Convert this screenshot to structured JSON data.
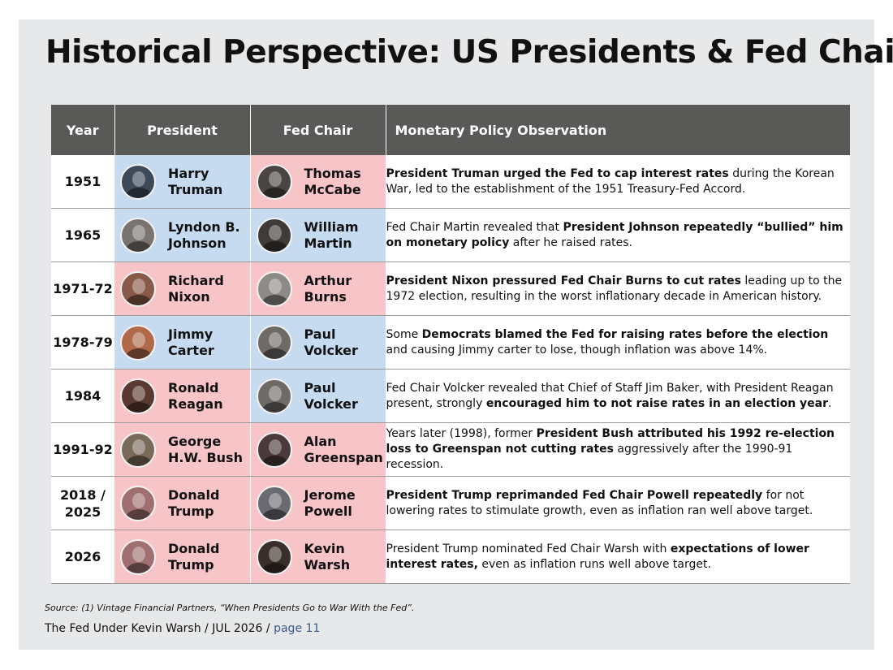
{
  "title": "Historical Perspective: US Presidents & Fed Chairs",
  "table": {
    "headers": [
      "Year",
      "President",
      "Fed Chair",
      "Monetary Policy Observation"
    ],
    "rows": [
      {
        "year": "1951",
        "president": {
          "name": "Harry Truman",
          "color": "blue",
          "icon": "portrait-truman-icon",
          "avatar": "#3d4a5a"
        },
        "chair": {
          "name": "Thomas McCabe",
          "color": "red",
          "icon": "portrait-mccabe-icon",
          "avatar": "#4a4542"
        },
        "obs": [
          {
            "text": "President Truman urged the Fed to cap interest rates",
            "bold": true
          },
          {
            "text": " during the Korean War, led to the establishment of the 1951 Treasury-Fed Accord.",
            "bold": false
          }
        ]
      },
      {
        "year": "1965",
        "president": {
          "name": "Lyndon B. Johnson",
          "color": "blue",
          "icon": "portrait-johnson-icon",
          "avatar": "#7a7470"
        },
        "chair": {
          "name": "William Martin",
          "color": "blue",
          "icon": "portrait-martin-icon",
          "avatar": "#3e3b39"
        },
        "obs": [
          {
            "text": "Fed Chair Martin revealed that ",
            "bold": false
          },
          {
            "text": "President Johnson repeatedly “bullied” him on monetary policy",
            "bold": true
          },
          {
            "text": " after he raised rates.",
            "bold": false
          }
        ]
      },
      {
        "year": "1971-72",
        "president": {
          "name": "Richard Nixon",
          "color": "red",
          "icon": "portrait-nixon-icon",
          "avatar": "#8a5a48"
        },
        "chair": {
          "name": "Arthur Burns",
          "color": "red",
          "icon": "portrait-burns-icon",
          "avatar": "#8e8a86"
        },
        "obs": [
          {
            "text": "President Nixon pressured Fed Chair Burns to cut rates",
            "bold": true
          },
          {
            "text": " leading up to the 1972 election, resulting in the worst inflationary decade in American history.",
            "bold": false
          }
        ]
      },
      {
        "year": "1978-79",
        "president": {
          "name": "Jimmy Carter",
          "color": "blue",
          "icon": "portrait-carter-icon",
          "avatar": "#b06a4a"
        },
        "chair": {
          "name": "Paul Volcker",
          "color": "blue",
          "icon": "portrait-volcker-icon",
          "avatar": "#6e6a66"
        },
        "obs": [
          {
            "text": "Some ",
            "bold": false
          },
          {
            "text": "Democrats blamed the Fed for raising rates before the election",
            "bold": true
          },
          {
            "text": " and causing Jimmy carter to lose, though inflation was above 14%.",
            "bold": false
          }
        ]
      },
      {
        "year": "1984",
        "president": {
          "name": "Ronald Reagan",
          "color": "red",
          "icon": "portrait-reagan-icon",
          "avatar": "#5a3a30"
        },
        "chair": {
          "name": "Paul Volcker",
          "color": "blue",
          "icon": "portrait-volcker-icon",
          "avatar": "#6e6a66"
        },
        "obs": [
          {
            "text": "Fed Chair Volcker revealed that Chief of Staff Jim Baker, with President Reagan present, strongly ",
            "bold": false
          },
          {
            "text": "encouraged him to not raise rates in an election year",
            "bold": true
          },
          {
            "text": ".",
            "bold": false
          }
        ]
      },
      {
        "year": "1991-92",
        "president": {
          "name": "George H.W. Bush",
          "color": "red",
          "icon": "portrait-bush-icon",
          "avatar": "#7a6a5a"
        },
        "chair": {
          "name": "Alan Greenspan",
          "color": "red",
          "icon": "portrait-greenspan-icon",
          "avatar": "#4a3a3a"
        },
        "obs": [
          {
            "text": "Years later (1998), former ",
            "bold": false
          },
          {
            "text": "President Bush attributed his 1992 re-election loss to Greenspan not cutting rates",
            "bold": true
          },
          {
            "text": " aggressively after the 1990-91 recession.",
            "bold": false
          }
        ]
      },
      {
        "year": "2018 / 2025",
        "president": {
          "name": "Donald Trump",
          "color": "red",
          "icon": "portrait-trump-icon",
          "avatar": "#a07070"
        },
        "chair": {
          "name": "Jerome Powell",
          "color": "red",
          "icon": "portrait-powell-icon",
          "avatar": "#6a6a72"
        },
        "obs": [
          {
            "text": "President Trump reprimanded Fed Chair Powell repeatedly",
            "bold": true
          },
          {
            "text": " for not lowering rates to stimulate growth, even as inflation ran well above target.",
            "bold": false
          }
        ]
      },
      {
        "year": "2026",
        "president": {
          "name": "Donald Trump",
          "color": "red",
          "icon": "portrait-trump-icon",
          "avatar": "#a07070"
        },
        "chair": {
          "name": "Kevin Warsh",
          "color": "red",
          "icon": "portrait-warsh-icon",
          "avatar": "#3a2e2a"
        },
        "obs": [
          {
            "text": "President Trump nominated Fed Chair Warsh with ",
            "bold": false
          },
          {
            "text": "expectations of lower interest rates,",
            "bold": true
          },
          {
            "text": " even as inflation runs well above target.",
            "bold": false
          }
        ]
      }
    ]
  },
  "source": "Source: (1) Vintage Financial Partners, “When Presidents Go to War With the Fed”.",
  "footer": {
    "text": "The Fed Under Kevin Warsh / JUL 2026 / ",
    "page": "page 11"
  }
}
